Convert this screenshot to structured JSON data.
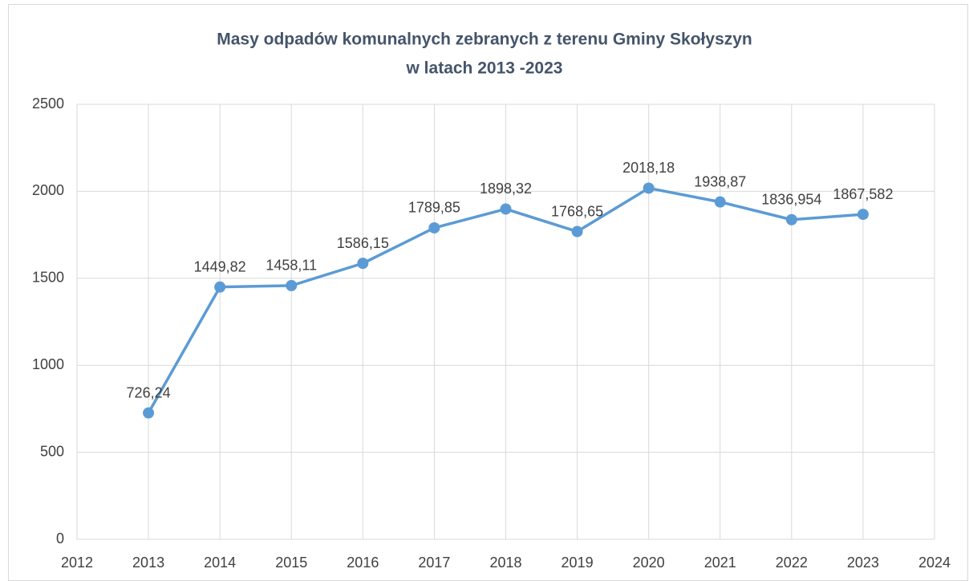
{
  "chart_data": {
    "type": "line",
    "title": [
      "Masy odpadów komunalnych zebranych z terenu Gminy Skołyszyn",
      "w latach 2013 -2023"
    ],
    "x": [
      2013,
      2014,
      2015,
      2016,
      2017,
      2018,
      2019,
      2020,
      2021,
      2022,
      2023
    ],
    "series": [
      {
        "color": "#5b9bd5",
        "values": [
          726.24,
          1449.82,
          1458.11,
          1586.15,
          1789.85,
          1898.32,
          1768.65,
          2018.18,
          1938.87,
          1836.954,
          1867.582
        ],
        "value_labels": [
          "726,24",
          "1449,82",
          "1458,11",
          "1586,15",
          "1789,85",
          "1898,32",
          "1768,65",
          "2018,18",
          "1938,87",
          "1836,954",
          "1867,582"
        ]
      }
    ],
    "xlim": [
      2012,
      2024
    ],
    "xticks": [
      2012,
      2013,
      2014,
      2015,
      2016,
      2017,
      2018,
      2019,
      2020,
      2021,
      2022,
      2023,
      2024
    ],
    "ylim": [
      0,
      2500
    ],
    "yticks": [
      0,
      500,
      1000,
      1500,
      2000,
      2500
    ],
    "grid": true
  }
}
